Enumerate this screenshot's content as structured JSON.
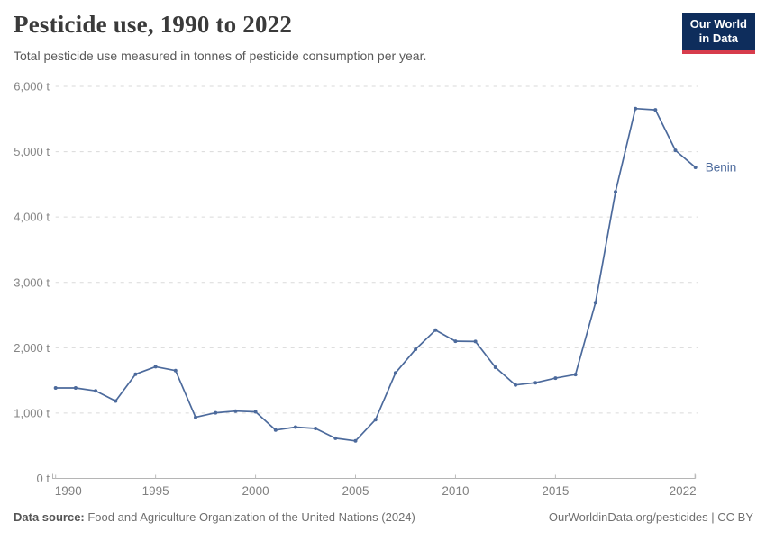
{
  "header": {
    "title": "Pesticide use, 1990 to 2022",
    "subtitle": "Total pesticide use measured in tonnes of pesticide consumption per year.",
    "logo": {
      "line1": "Our World",
      "line2": "in Data"
    }
  },
  "chart_data": {
    "type": "line",
    "title": "Pesticide use, 1990 to 2022",
    "unit": "tonnes",
    "grid": "horizontal-dashed",
    "legend": "end-of-line-label",
    "line_color": "#4c6a9c",
    "x": [
      1990,
      1991,
      1992,
      1993,
      1994,
      1995,
      1996,
      1997,
      1998,
      1999,
      2000,
      2001,
      2002,
      2003,
      2004,
      2005,
      2006,
      2007,
      2008,
      2009,
      2010,
      2011,
      2012,
      2013,
      2014,
      2015,
      2016,
      2017,
      2018,
      2019,
      2020,
      2021,
      2022
    ],
    "series": [
      {
        "name": "Benin",
        "values": [
          1385,
          1385,
          1340,
          1185,
          1595,
          1710,
          1650,
          935,
          1005,
          1030,
          1020,
          740,
          785,
          765,
          615,
          575,
          900,
          1615,
          1975,
          2270,
          2100,
          2095,
          1700,
          1430,
          1465,
          1535,
          1590,
          2690,
          4385,
          5660,
          5640,
          5020,
          4760
        ]
      }
    ],
    "xlabel": "",
    "ylabel": "",
    "xlim": [
      1990,
      2022
    ],
    "ylim": [
      0,
      6000
    ],
    "yticks": {
      "values": [
        0,
        1000,
        2000,
        3000,
        4000,
        5000,
        6000
      ],
      "labels": [
        "0 t",
        "1,000 t",
        "2,000 t",
        "3,000 t",
        "4,000 t",
        "5,000 t",
        "6,000 t"
      ]
    },
    "xticks": {
      "values": [
        1990,
        1995,
        2000,
        2005,
        2010,
        2015,
        2022
      ],
      "labels": [
        "1990",
        "1995",
        "2000",
        "2005",
        "2010",
        "2015",
        "2022"
      ]
    },
    "end_label": "Benin"
  },
  "footer": {
    "source_label": "Data source:",
    "source_text": " Food and Agriculture Organization of the United Nations (2024)",
    "right_text": "OurWorldinData.org/pesticides | CC BY"
  }
}
